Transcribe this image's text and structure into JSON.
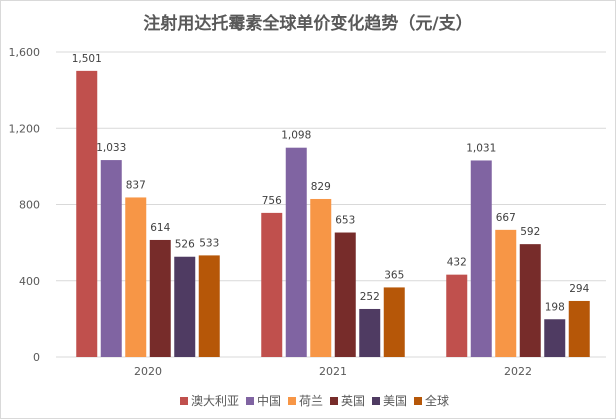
{
  "chart_data": {
    "type": "bar",
    "title": "注射用达托霉素全球单价变化趋势（元/支）",
    "categories": [
      "2020",
      "2021",
      "2022"
    ],
    "series": [
      {
        "name": "澳大利亚",
        "color": "#C0504D",
        "values": [
          1501,
          756,
          432
        ]
      },
      {
        "name": "中国",
        "color": "#8064A2",
        "values": [
          1033,
          1098,
          1031
        ]
      },
      {
        "name": "荷兰",
        "color": "#F79646",
        "values": [
          837,
          829,
          667
        ]
      },
      {
        "name": "英国",
        "color": "#772C2A",
        "values": [
          614,
          653,
          592
        ]
      },
      {
        "name": "美国",
        "color": "#4F3B62",
        "values": [
          526,
          252,
          198
        ]
      },
      {
        "name": "全球",
        "color": "#B65708",
        "values": [
          533,
          365,
          294
        ]
      }
    ],
    "ylim": [
      0,
      1600
    ],
    "yticks": [
      0,
      400,
      800,
      1200,
      1600
    ],
    "ytick_labels": [
      "0",
      "400",
      "800",
      "1,200",
      "1,600"
    ],
    "grid": true,
    "legend": "bottom"
  }
}
